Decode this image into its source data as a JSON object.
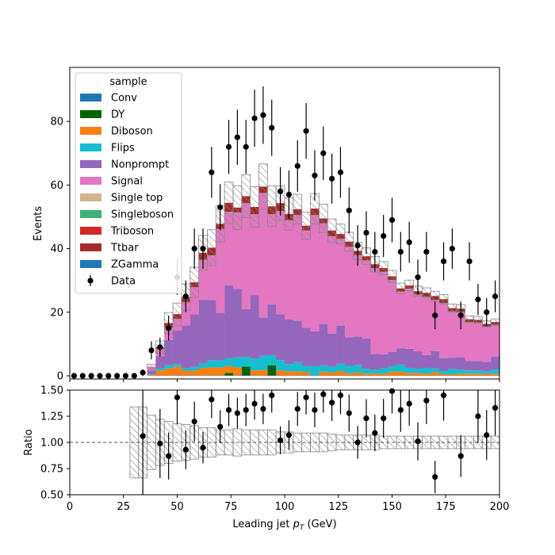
{
  "colors": {
    "Conv": "#1f77b4",
    "DY": "#006400",
    "Diboson": "#ff7f0e",
    "Flips": "#17becf",
    "Nonprompt": "#9467bd",
    "Signal": "#e377c2",
    "Single top": "#d2b48c",
    "Singleboson": "#3cb371",
    "Triboson": "#d62728",
    "Ttbar": "#a52a2a",
    "ZGamma": "#1f77b4",
    "Data": "#000000"
  },
  "chart_data": [
    {
      "type": "bar",
      "panel": "main",
      "stacked": true,
      "histtype": "stepfilled",
      "xlabel": "Leading jet  p_T (GeV)",
      "ylabel": "Events",
      "xlim": [
        0,
        200
      ],
      "ylim": [
        -1,
        97
      ],
      "yticks": [
        0,
        20,
        40,
        60,
        80
      ],
      "legend": {
        "title": "sample",
        "placement": "top-left",
        "entries": [
          "Conv",
          "DY",
          "Diboson",
          "Flips",
          "Nonprompt",
          "Signal",
          "Single top",
          "Singleboson",
          "Triboson",
          "Ttbar",
          "ZGamma",
          "Data"
        ]
      },
      "bin_edges": [
        0,
        4,
        8,
        12,
        16,
        20,
        24,
        28,
        32,
        36,
        40,
        44,
        48,
        52,
        56,
        60,
        64,
        68,
        72,
        76,
        80,
        84,
        88,
        92,
        96,
        100,
        104,
        108,
        112,
        116,
        120,
        124,
        128,
        132,
        136,
        140,
        144,
        148,
        152,
        156,
        160,
        164,
        168,
        172,
        176,
        180,
        184,
        188,
        192,
        196,
        200
      ],
      "series": [
        {
          "name": "Conv",
          "values": [
            0,
            0,
            0,
            0,
            0,
            0,
            0,
            0,
            0,
            0,
            0.1,
            0.1,
            0.1,
            0.1,
            0.1,
            0.1,
            0.1,
            0.1,
            0.1,
            0.1,
            0.1,
            0.1,
            0.1,
            0.1,
            0.1,
            0.1,
            0.1,
            0.1,
            0.1,
            0.1,
            0.1,
            0.1,
            0.1,
            0.1,
            0.1,
            0.1,
            0.1,
            0.1,
            0.1,
            0.1,
            0.1,
            0.1,
            0.1,
            0.1,
            0.1,
            0.1,
            0.1,
            0.1,
            0.1,
            0.1
          ]
        },
        {
          "name": "DY",
          "values": [
            0,
            0,
            0,
            0,
            0,
            0,
            0,
            0,
            0,
            0,
            0,
            0,
            0,
            0,
            0,
            0,
            0,
            0,
            0.8,
            0,
            2.8,
            0,
            0,
            3.2,
            0,
            0,
            0,
            0,
            0,
            0,
            0,
            0,
            0,
            0,
            0,
            0,
            0,
            0,
            0,
            0,
            0,
            0,
            0,
            0,
            0,
            0,
            0,
            0,
            0,
            0
          ]
        },
        {
          "name": "Diboson",
          "values": [
            0,
            0,
            0,
            0,
            0,
            0,
            0,
            0,
            0,
            0.3,
            1.6,
            2.2,
            2.8,
            1.5,
            1.5,
            2.4,
            2.5,
            2.5,
            2.2,
            2.5,
            0,
            1.6,
            1.7,
            0,
            1.6,
            1.3,
            1.3,
            1.0,
            0,
            1.2,
            1.0,
            1.4,
            0.7,
            1.0,
            0.6,
            0.6,
            0.6,
            1.2,
            1.2,
            0.8,
            0.8,
            0.6,
            1.0,
            0.4,
            0.4,
            0.6,
            0.6,
            0.6,
            0.5,
            0.6
          ]
        },
        {
          "name": "Flips",
          "values": [
            0,
            0,
            0,
            0,
            0,
            0,
            0,
            0,
            0,
            0.2,
            0.8,
            1.0,
            0.8,
            0.8,
            1.2,
            1.5,
            2.3,
            2.2,
            2.4,
            3.2,
            3.1,
            3.7,
            4.5,
            3.2,
            3.2,
            2.3,
            2.9,
            2.0,
            2.9,
            2.0,
            1.7,
            2.3,
            2.3,
            2.3,
            1.5,
            1.2,
            1.6,
            1.7,
            2.3,
            1.6,
            1.3,
            1.8,
            1.2,
            1.0,
            1.7,
            1.2,
            1.0,
            1.0,
            0.8,
            1.3
          ]
        },
        {
          "name": "Nonprompt",
          "values": [
            0,
            0,
            0,
            0,
            0,
            0,
            0,
            0,
            0,
            1.2,
            3.6,
            8.0,
            10.5,
            13.5,
            16.5,
            20.0,
            19.0,
            15.0,
            23.0,
            21.5,
            15.0,
            20.0,
            12.0,
            16.0,
            14.5,
            14.0,
            13.0,
            12.0,
            11.0,
            13.0,
            10.5,
            12.0,
            9.0,
            9.0,
            9.5,
            5.0,
            4.5,
            4.5,
            5.0,
            6.0,
            5.5,
            4.0,
            5.5,
            4.0,
            3.5,
            4.0,
            3.0,
            3.0,
            3.0,
            4.0
          ]
        },
        {
          "name": "Signal",
          "values": [
            0,
            0,
            0,
            0,
            0,
            0,
            0,
            0,
            0,
            1.2,
            2.3,
            3.7,
            3.6,
            7.2,
            8.5,
            12.4,
            13.9,
            26.3,
            23.0,
            24.0,
            33.2,
            25.3,
            39.1,
            28.2,
            32.3,
            31.1,
            33.2,
            30.5,
            36.5,
            31.6,
            30.5,
            27.2,
            28.4,
            25.5,
            24.5,
            26.9,
            25.8,
            22.5,
            17.8,
            18.8,
            17.8,
            18.3,
            16.0,
            17.3,
            14.5,
            14.1,
            12.1,
            12.0,
            11.0,
            10.0
          ]
        },
        {
          "name": "Single top",
          "values": [
            0,
            0,
            0,
            0,
            0,
            0,
            0,
            0,
            0,
            0,
            0,
            0,
            0,
            0,
            0,
            0,
            0,
            0,
            0,
            0,
            0,
            0,
            0,
            0,
            0,
            0,
            0,
            0,
            0,
            0,
            0,
            0,
            0,
            0,
            0,
            0,
            0,
            0,
            0,
            0,
            0,
            0,
            0,
            0,
            0,
            0,
            0,
            0,
            0,
            0
          ]
        },
        {
          "name": "Singleboson",
          "values": [
            0,
            0,
            0,
            0,
            0,
            0,
            0,
            0,
            0,
            0,
            0.1,
            0.1,
            0.1,
            0.1,
            0.1,
            0.1,
            0.1,
            0.1,
            0.1,
            0.1,
            0.1,
            0.1,
            0.1,
            0.1,
            0.1,
            0.1,
            0.1,
            0.1,
            0.1,
            0.1,
            0.1,
            0.1,
            0.1,
            0.1,
            0.1,
            0.1,
            0.1,
            0.1,
            0.1,
            0.1,
            0.1,
            0.1,
            0.1,
            0.1,
            0.1,
            0.1,
            0.1,
            0.1,
            0.1,
            0.1
          ]
        },
        {
          "name": "Triboson",
          "values": [
            0,
            0,
            0,
            0,
            0,
            0,
            0,
            0,
            0,
            0,
            0,
            0,
            0,
            0,
            0,
            0,
            0,
            0,
            0,
            0,
            0,
            0,
            0,
            0,
            0,
            0,
            0,
            0,
            0,
            0,
            0,
            0,
            0,
            0,
            0,
            0,
            0,
            0,
            0,
            0,
            0,
            0,
            0,
            0,
            0,
            0,
            0,
            0,
            0,
            0
          ]
        },
        {
          "name": "Ttbar",
          "values": [
            0,
            0,
            0,
            0,
            0,
            0,
            0,
            0,
            0,
            0,
            0.5,
            1.5,
            1.5,
            1.5,
            1.5,
            2.2,
            2.4,
            1.6,
            2.8,
            1.5,
            2.2,
            2.3,
            2.0,
            2.5,
            2.5,
            2.0,
            1.8,
            1.5,
            2.0,
            1.5,
            1.8,
            1.5,
            1.6,
            1.3,
            1.3,
            1.2,
            1.2,
            1.2,
            1.0,
            1.0,
            1.0,
            1.2,
            1.2,
            1.2,
            1.0,
            1.0,
            0.9,
            0.8,
            0.8,
            0.8
          ]
        }
      ],
      "uncertainty_band": {
        "style": "hatched",
        "relative_half_width": [
          0,
          0,
          0,
          0,
          0,
          0,
          0,
          0.34,
          0.34,
          0.26,
          0.22,
          0.2,
          0.18,
          0.17,
          0.16,
          0.14,
          0.14,
          0.12,
          0.12,
          0.13,
          0.12,
          0.12,
          0.12,
          0.12,
          0.1,
          0.1,
          0.09,
          0.09,
          0.09,
          0.09,
          0.08,
          0.07,
          0.07,
          0.07,
          0.07,
          0.07,
          0.06,
          0.06,
          0.06,
          0.06,
          0.06,
          0.06,
          0.06,
          0.06,
          0.06,
          0.06,
          0.06,
          0.06,
          0.06,
          0.06
        ]
      },
      "data_points": {
        "name": "Data",
        "x": [
          2,
          6,
          10,
          14,
          18,
          22,
          26,
          30,
          34,
          38,
          42,
          46,
          50,
          54,
          58,
          62,
          66,
          70,
          74,
          78,
          82,
          86,
          90,
          94,
          98,
          102,
          106,
          110,
          114,
          118,
          122,
          126,
          130,
          134,
          138,
          142,
          146,
          150,
          154,
          158,
          162,
          166,
          170,
          174,
          178,
          182,
          186,
          190,
          194,
          198
        ],
        "y": [
          0,
          0,
          0,
          0,
          0,
          0,
          0,
          0,
          1,
          8,
          9,
          15,
          31,
          25,
          40,
          40,
          64,
          53,
          72,
          75,
          72,
          81,
          82,
          78,
          58,
          57,
          66,
          77,
          63,
          70,
          62,
          64,
          52,
          41,
          45,
          39,
          44,
          49,
          39,
          42,
          31,
          39,
          19,
          36,
          40,
          19,
          36,
          24,
          20,
          25
        ]
      }
    },
    {
      "type": "scatter",
      "panel": "ratio",
      "xlabel": "Leading jet  p_T (GeV)",
      "ylabel": "Ratio",
      "xlim": [
        0,
        200
      ],
      "ylim": [
        0.5,
        1.5
      ],
      "yticks": [
        0.5,
        0.75,
        1.0,
        1.25,
        1.5
      ],
      "ytick_labels": [
        "0.50",
        "0.75",
        "1.00",
        "1.25",
        "1.50"
      ],
      "xticks": [
        0,
        25,
        50,
        75,
        100,
        125,
        150,
        175,
        200
      ],
      "reference_line": 1.0,
      "points": {
        "x": [
          34,
          42,
          46,
          50,
          54,
          58,
          62,
          66,
          70,
          74,
          78,
          82,
          86,
          90,
          94,
          98,
          102,
          106,
          110,
          114,
          118,
          122,
          126,
          130,
          134,
          138,
          142,
          146,
          150,
          154,
          158,
          162,
          166,
          170,
          174,
          182,
          190,
          194,
          198
        ],
        "y": [
          1.06,
          0.99,
          0.87,
          1.43,
          0.93,
          1.2,
          0.95,
          1.41,
          1.15,
          1.31,
          1.28,
          1.31,
          1.37,
          1.32,
          1.45,
          1.02,
          1.07,
          1.32,
          1.43,
          1.31,
          1.46,
          1.38,
          1.45,
          1.28,
          1.0,
          1.23,
          1.09,
          1.23,
          1.49,
          1.31,
          1.37,
          1.01,
          1.4,
          0.67,
          1.45,
          0.87,
          1.25,
          1.07,
          1.33
        ]
      }
    }
  ]
}
